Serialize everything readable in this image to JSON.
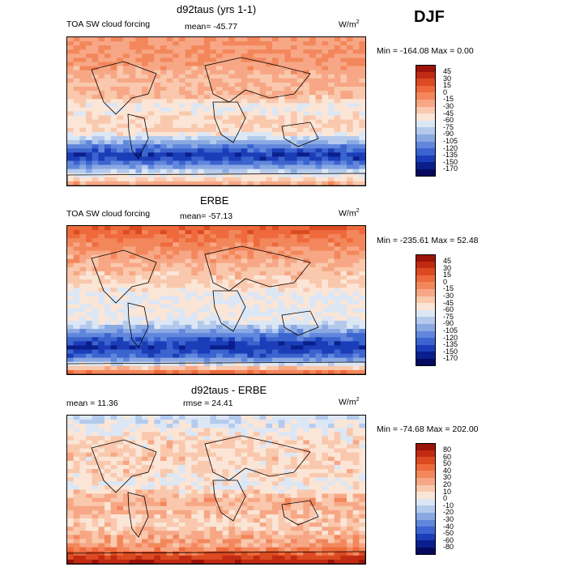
{
  "season": "DJF",
  "chart_data": [
    {
      "type": "heatmap",
      "title": "d92taus (yrs 1-1)",
      "subtitle": "TOA SW cloud forcing",
      "mean_label": "mean= -45.77",
      "units": "W/m",
      "units_sup": "2",
      "stats": "Min = -164.08 Max =    0.00",
      "min": -164.08,
      "max": 0.0,
      "mean": -45.77,
      "legend_levels": [
        "45",
        "30",
        "15",
        "0",
        "-15",
        "-30",
        "-45",
        "-60",
        "-75",
        "-90",
        "-105",
        "-120",
        "-135",
        "-150",
        "-170"
      ],
      "legend_colors": [
        "#9b1309",
        "#c12b12",
        "#dc4a22",
        "#ee6a3c",
        "#f3875c",
        "#f7a785",
        "#f9c8ad",
        "#fbe5d6",
        "#dce7f5",
        "#b4caed",
        "#8aa9e3",
        "#6187dc",
        "#3c64cf",
        "#1b3db8",
        "#0a1f8c",
        "#050a5e"
      ],
      "zonal_bands": [
        {
          "lat": 90,
          "value": -15
        },
        {
          "lat": 60,
          "value": -15
        },
        {
          "lat": 40,
          "value": -30
        },
        {
          "lat": 20,
          "value": -30
        },
        {
          "lat": 5,
          "value": -60
        },
        {
          "lat": -10,
          "value": -45
        },
        {
          "lat": -25,
          "value": -45
        },
        {
          "lat": -40,
          "value": -105
        },
        {
          "lat": -55,
          "value": -150
        },
        {
          "lat": -70,
          "value": -90
        },
        {
          "lat": -90,
          "value": -15
        }
      ]
    },
    {
      "type": "heatmap",
      "title": "ERBE",
      "subtitle": "TOA SW cloud forcing",
      "mean_label": "mean= -57.13",
      "units": "W/m",
      "units_sup": "2",
      "stats": "Min = -235.61 Max =  52.48",
      "min": -235.61,
      "max": 52.48,
      "mean": -57.13,
      "legend_levels": [
        "45",
        "30",
        "15",
        "0",
        "-15",
        "-30",
        "-45",
        "-60",
        "-75",
        "-90",
        "-105",
        "-120",
        "-135",
        "-150",
        "-170"
      ],
      "legend_colors": [
        "#9b1309",
        "#c12b12",
        "#dc4a22",
        "#ee6a3c",
        "#f3875c",
        "#f7a785",
        "#f9c8ad",
        "#fbe5d6",
        "#dce7f5",
        "#b4caed",
        "#8aa9e3",
        "#6187dc",
        "#3c64cf",
        "#1b3db8",
        "#0a1f8c",
        "#050a5e"
      ],
      "zonal_bands": [
        {
          "lat": 90,
          "value": 15
        },
        {
          "lat": 60,
          "value": -15
        },
        {
          "lat": 40,
          "value": -30
        },
        {
          "lat": 20,
          "value": -45
        },
        {
          "lat": 5,
          "value": -60
        },
        {
          "lat": -10,
          "value": -60
        },
        {
          "lat": -25,
          "value": -60
        },
        {
          "lat": -40,
          "value": -105
        },
        {
          "lat": -55,
          "value": -150
        },
        {
          "lat": -70,
          "value": -120
        },
        {
          "lat": -90,
          "value": 15
        }
      ]
    },
    {
      "type": "heatmap",
      "title": "d92taus - ERBE",
      "subtitle": "mean =   11.36",
      "mean_label": "rmse =   24.41",
      "units": "W/m",
      "units_sup": "2",
      "stats": "Min = -74.68 Max = 202.00",
      "min": -74.68,
      "max": 202.0,
      "mean": 11.36,
      "rmse": 24.41,
      "legend_levels": [
        "80",
        "60",
        "50",
        "40",
        "30",
        "20",
        "10",
        "0",
        "-10",
        "-20",
        "-30",
        "-40",
        "-50",
        "-60",
        "-80"
      ],
      "legend_colors": [
        "#9b1309",
        "#c12b12",
        "#dc4a22",
        "#ee6a3c",
        "#f3875c",
        "#f7a785",
        "#f9c8ad",
        "#fbe5d6",
        "#dce7f5",
        "#b4caed",
        "#8aa9e3",
        "#6187dc",
        "#3c64cf",
        "#1b3db8",
        "#0a1f8c",
        "#050a5e"
      ],
      "zonal_bands": [
        {
          "lat": 90,
          "value": -10
        },
        {
          "lat": 60,
          "value": 10
        },
        {
          "lat": 40,
          "value": 10
        },
        {
          "lat": 20,
          "value": 10
        },
        {
          "lat": 5,
          "value": 0
        },
        {
          "lat": -10,
          "value": 20
        },
        {
          "lat": -25,
          "value": 20
        },
        {
          "lat": -40,
          "value": 10
        },
        {
          "lat": -55,
          "value": 20
        },
        {
          "lat": -70,
          "value": 30
        },
        {
          "lat": -90,
          "value": 80
        }
      ]
    }
  ]
}
